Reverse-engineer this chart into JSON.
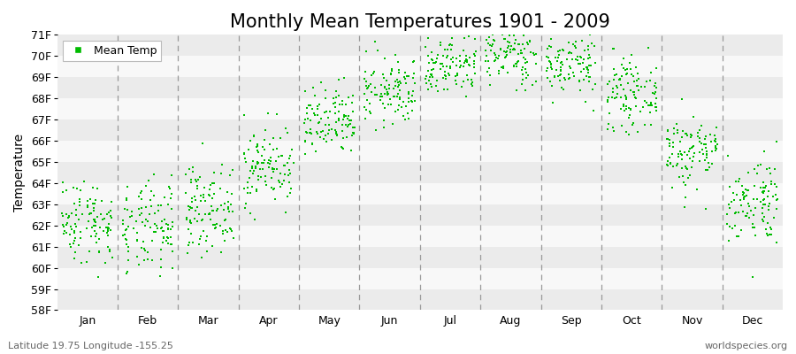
{
  "title": "Monthly Mean Temperatures 1901 - 2009",
  "ylabel": "Temperature",
  "footer_left": "Latitude 19.75 Longitude -155.25",
  "footer_right": "worldspecies.org",
  "ylim": [
    58,
    71
  ],
  "yticks": [
    58,
    59,
    60,
    61,
    62,
    63,
    64,
    65,
    66,
    67,
    68,
    69,
    70,
    71
  ],
  "ytick_labels": [
    "58F",
    "59F",
    "60F",
    "61F",
    "62F",
    "63F",
    "64F",
    "65F",
    "66F",
    "67F",
    "68F",
    "69F",
    "70F",
    "71F"
  ],
  "months": [
    "Jan",
    "Feb",
    "Mar",
    "Apr",
    "May",
    "Jun",
    "Jul",
    "Aug",
    "Sep",
    "Oct",
    "Nov",
    "Dec"
  ],
  "dot_color": "#00bb00",
  "dot_size": 3,
  "background_color": "#ffffff",
  "plot_bg_even": "#ebebeb",
  "plot_bg_odd": "#f8f8f8",
  "legend_label": "Mean Temp",
  "legend_marker_color": "#00bb00",
  "title_fontsize": 15,
  "axis_fontsize": 10,
  "tick_fontsize": 9,
  "monthly_means": [
    62.2,
    61.8,
    62.8,
    64.8,
    66.8,
    68.3,
    69.6,
    70.1,
    69.6,
    68.2,
    65.5,
    63.2
  ],
  "monthly_stds": [
    1.0,
    1.1,
    1.0,
    0.95,
    0.85,
    0.8,
    0.75,
    0.75,
    0.75,
    0.8,
    0.9,
    1.05
  ],
  "n_years": 109,
  "seed": 42
}
